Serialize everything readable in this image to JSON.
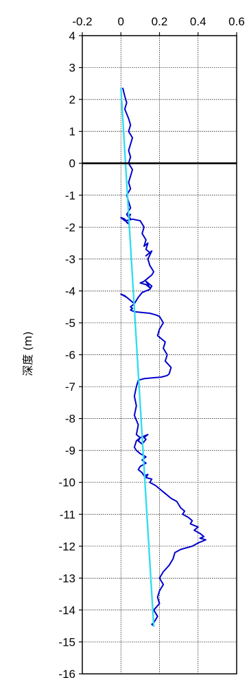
{
  "chart_data": {
    "type": "line",
    "title": "",
    "xlabel": "",
    "ylabel": "深度 (m)",
    "x_axis_position": "top",
    "xlim": [
      -0.2,
      0.6
    ],
    "ylim": [
      -16,
      4
    ],
    "xticks": [
      -0.2,
      0,
      0.2,
      0.4,
      0.6
    ],
    "xtick_labels": [
      "-0.2",
      "0",
      "0.2",
      "0.4",
      "0.6"
    ],
    "yticks": [
      4,
      3,
      2,
      1,
      0,
      -1,
      -2,
      -3,
      -4,
      -5,
      -6,
      -7,
      -8,
      -9,
      -10,
      -11,
      -12,
      -13,
      -14,
      -15,
      -16
    ],
    "ytick_labels": [
      "4",
      "3",
      "2",
      "1",
      "0",
      "-1",
      "-2",
      "-3",
      "-4",
      "-5",
      "-6",
      "-7",
      "-8",
      "-9",
      "-10",
      "-11",
      "-12",
      "-13",
      "-14",
      "-15",
      "-16"
    ],
    "grid": true,
    "reference_line": {
      "axis": "y",
      "value": 0,
      "color": "#000000"
    },
    "series": [
      {
        "color": "#0000cc",
        "x": [
          0.01,
          0.02,
          0.03,
          0.02,
          0.04,
          0.05,
          0.04,
          0.06,
          0.05,
          0.04,
          0.05,
          0.04,
          0.06,
          0.05,
          0.04,
          0.05,
          0.03,
          0.04,
          0.05,
          0.04,
          0.03,
          0.04,
          0.05,
          0.04,
          0.05,
          0.04,
          0.04,
          0.03,
          0.02,
          0.0,
          0.02,
          0.04,
          0.06,
          0.1,
          0.12,
          0.11,
          0.13,
          0.12,
          0.14,
          0.13,
          0.15,
          0.13,
          0.16,
          0.14,
          0.15,
          0.17,
          0.16,
          0.14,
          0.12,
          0.1,
          0.13,
          0.15,
          0.13,
          0.16,
          0.15,
          0.13,
          0.11,
          0.09,
          0.07,
          0.03,
          0.0,
          0.02,
          0.05,
          0.07,
          0.05,
          0.06,
          0.05,
          0.07,
          0.15,
          0.18,
          0.2,
          0.22,
          0.2,
          0.19,
          0.23,
          0.22,
          0.24,
          0.23,
          0.26,
          0.25,
          0.24,
          0.21,
          0.17,
          0.12,
          0.09,
          0.08,
          0.07,
          0.08,
          0.07,
          0.09,
          0.08,
          0.1,
          0.09,
          0.11,
          0.13,
          0.12,
          0.14,
          0.12,
          0.1,
          0.08,
          0.07,
          0.08,
          0.1,
          0.13,
          0.11,
          0.13,
          0.1,
          0.09,
          0.11,
          0.12,
          0.14,
          0.13,
          0.16,
          0.15,
          0.18,
          0.2,
          0.22,
          0.24,
          0.26,
          0.29,
          0.3,
          0.31,
          0.33,
          0.32,
          0.35,
          0.37,
          0.36,
          0.4,
          0.38,
          0.41,
          0.43,
          0.41,
          0.44,
          0.4,
          0.37,
          0.31,
          0.28,
          0.27,
          0.25,
          0.22,
          0.2,
          0.22,
          0.2,
          0.19,
          0.2,
          0.17,
          0.19,
          0.18,
          0.17,
          0.16,
          0.17
        ],
        "y": [
          2.35,
          2.1,
          1.9,
          1.7,
          1.4,
          1.2,
          1.0,
          0.8,
          0.6,
          0.4,
          0.2,
          0.0,
          -0.2,
          -0.4,
          -0.6,
          -0.8,
          -1.0,
          -1.2,
          -1.4,
          -1.5,
          -1.6,
          -1.7,
          -1.6,
          -1.65,
          -1.75,
          -1.8,
          -1.9,
          -1.85,
          -1.75,
          -1.7,
          -1.8,
          -1.78,
          -1.75,
          -1.8,
          -2.0,
          -2.2,
          -2.4,
          -2.6,
          -2.5,
          -2.7,
          -2.8,
          -2.9,
          -2.75,
          -3.0,
          -3.2,
          -3.4,
          -3.5,
          -3.6,
          -3.7,
          -3.75,
          -3.8,
          -3.9,
          -3.7,
          -3.85,
          -3.95,
          -4.0,
          -4.05,
          -4.2,
          -4.4,
          -4.2,
          -4.1,
          -4.15,
          -4.3,
          -4.4,
          -4.5,
          -4.55,
          -4.6,
          -4.65,
          -4.7,
          -4.75,
          -4.8,
          -5.0,
          -5.2,
          -5.4,
          -5.6,
          -5.8,
          -6.0,
          -6.2,
          -6.4,
          -6.6,
          -6.65,
          -6.7,
          -6.72,
          -6.75,
          -6.8,
          -7.0,
          -7.3,
          -7.6,
          -7.9,
          -8.2,
          -8.5,
          -8.6,
          -8.7,
          -8.8,
          -8.65,
          -8.6,
          -8.5,
          -8.55,
          -8.6,
          -8.7,
          -8.9,
          -9.0,
          -9.1,
          -9.2,
          -9.3,
          -9.4,
          -9.5,
          -9.6,
          -9.7,
          -9.8,
          -9.75,
          -9.85,
          -9.9,
          -10.0,
          -10.1,
          -10.2,
          -10.3,
          -10.4,
          -10.5,
          -10.6,
          -10.7,
          -10.8,
          -10.9,
          -11.0,
          -11.1,
          -11.2,
          -11.3,
          -11.4,
          -11.5,
          -11.6,
          -11.7,
          -11.75,
          -11.8,
          -11.9,
          -12.0,
          -12.1,
          -12.2,
          -12.4,
          -12.6,
          -12.8,
          -13.0,
          -13.2,
          -13.4,
          -13.6,
          -13.8,
          -14.0,
          -14.2,
          -14.3,
          -14.4,
          -14.45,
          -14.5
        ]
      },
      {
        "color": "#33ddee",
        "x": [
          0.0,
          0.17
        ],
        "y": [
          2.35,
          -14.5
        ]
      }
    ]
  }
}
